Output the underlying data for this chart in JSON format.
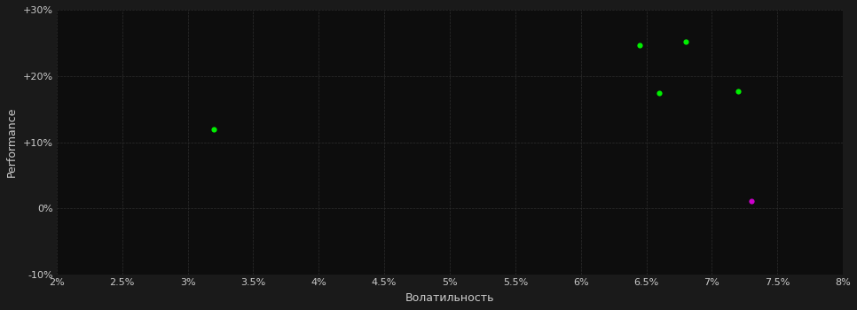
{
  "background_color": "#1a1a1a",
  "plot_bg_color": "#0d0d0d",
  "grid_color": "#2e2e2e",
  "text_color": "#cccccc",
  "xlabel": "Волатильность",
  "ylabel": "Performance",
  "xlim": [
    0.02,
    0.08
  ],
  "ylim": [
    -0.1,
    0.3
  ],
  "xticks": [
    0.02,
    0.025,
    0.03,
    0.035,
    0.04,
    0.045,
    0.05,
    0.055,
    0.06,
    0.065,
    0.07,
    0.075,
    0.08
  ],
  "yticks": [
    -0.1,
    0.0,
    0.1,
    0.2,
    0.3
  ],
  "green_points": [
    [
      0.032,
      0.12
    ],
    [
      0.0645,
      0.247
    ],
    [
      0.068,
      0.252
    ],
    [
      0.066,
      0.175
    ],
    [
      0.072,
      0.177
    ]
  ],
  "magenta_points": [
    [
      0.073,
      0.012
    ]
  ],
  "point_size": 20,
  "green_color": "#00ee00",
  "magenta_color": "#cc00cc"
}
